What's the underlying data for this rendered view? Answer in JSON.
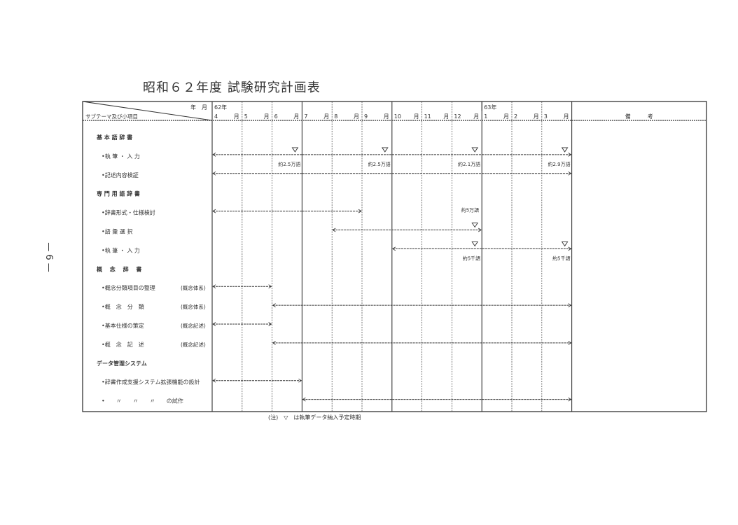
{
  "title": "昭和６２年度 試験研究計画表",
  "page_number": "— 6 —",
  "note": "(注)　▽　は執筆データ納入予定時期",
  "header": {
    "corner_top": "年　月",
    "corner_bottom": "サブテーマ及び小項目",
    "remarks": "備　　　考",
    "month_suffix": "月",
    "months": [
      {
        "month": "4",
        "year": "62年"
      },
      {
        "month": "5"
      },
      {
        "month": "6"
      },
      {
        "month": "7"
      },
      {
        "month": "8"
      },
      {
        "month": "9"
      },
      {
        "month": "10"
      },
      {
        "month": "11"
      },
      {
        "month": "12"
      },
      {
        "month": "1",
        "year": "63年"
      },
      {
        "month": "2"
      },
      {
        "month": "3"
      }
    ]
  },
  "rows": [
    {
      "label": "基 本 語 辞 書",
      "type": "section"
    },
    {
      "label": "•執 筆 ・ 入 力",
      "bar": {
        "from": "4",
        "to": "3"
      },
      "deliveries": [
        {
          "month": "6",
          "label": "約2.5万語"
        },
        {
          "month": "9",
          "label": "約2.5万語"
        },
        {
          "month": "12",
          "label": "約2.1万語"
        },
        {
          "month": "3",
          "label": "約2.9万語"
        }
      ]
    },
    {
      "label": "•記述内容検証",
      "bar": {
        "from": "4",
        "to": "3"
      }
    },
    {
      "label": "専 門 用 語 辞 書",
      "type": "section"
    },
    {
      "label": "•辞書形式・仕様検討",
      "bar": {
        "from": "4",
        "to": "8"
      },
      "annotations": [
        {
          "month": "12",
          "label": "約5万語"
        }
      ]
    },
    {
      "label": "•語 彙 選 択",
      "bar": {
        "from": "8",
        "to": "12"
      },
      "deliveries": [
        {
          "month": "12"
        }
      ]
    },
    {
      "label": "•執 筆 ・ 入 力",
      "bar": {
        "from": "10",
        "to": "3"
      },
      "deliveries": [
        {
          "month": "12",
          "label": "約5千語"
        },
        {
          "month": "3",
          "label": "約5千語"
        }
      ]
    },
    {
      "label": "概　 念　 辞　 書",
      "type": "section"
    },
    {
      "label": "•概念分類項目の整理",
      "sub": "(概念体系)",
      "bar": {
        "from": "4",
        "to": "5"
      }
    },
    {
      "label": "•概　念　分　類",
      "sub": "(概念体系)",
      "bar": {
        "from": "6",
        "to": "3"
      }
    },
    {
      "label": "•基本仕様の策定",
      "sub": "(概念記述)",
      "bar": {
        "from": "4",
        "to": "5"
      }
    },
    {
      "label": "•概　念　記　述",
      "sub": "(概念記述)",
      "bar": {
        "from": "6",
        "to": "3"
      }
    },
    {
      "label": "データ管理システム",
      "type": "section"
    },
    {
      "label": "•辞書作成支援システム拡張機能の設計",
      "bar": {
        "from": "4",
        "to": "6"
      }
    },
    {
      "label": "•　　〃　　〃　　〃　　の試作",
      "bar": {
        "from": "7",
        "to": "3"
      }
    }
  ],
  "colors": {
    "ink": "#333333",
    "grid": "#555555"
  }
}
